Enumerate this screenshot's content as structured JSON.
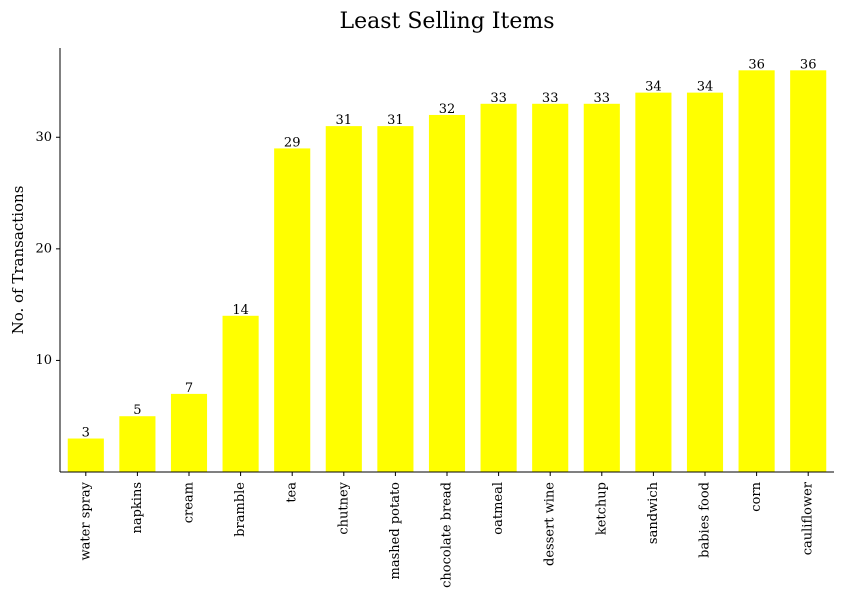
{
  "chart_data": {
    "type": "bar",
    "title": "Least Selling Items",
    "xlabel": "",
    "ylabel": "No. of Transactions",
    "categories": [
      "water spray",
      "napkins",
      "cream",
      "bramble",
      "tea",
      "chutney",
      "mashed potato",
      "chocolate bread",
      "oatmeal",
      "dessert wine",
      "ketchup",
      "sandwich",
      "babies food",
      "corn",
      "cauliflower"
    ],
    "values": [
      3,
      5,
      7,
      14,
      29,
      31,
      31,
      32,
      33,
      33,
      33,
      34,
      34,
      36,
      36
    ],
    "ylim": [
      0,
      38
    ],
    "yticks": [
      10,
      20,
      30
    ],
    "grid": false,
    "legend": "none",
    "bar_color": "#ffff00",
    "axis_color": "#000000"
  }
}
